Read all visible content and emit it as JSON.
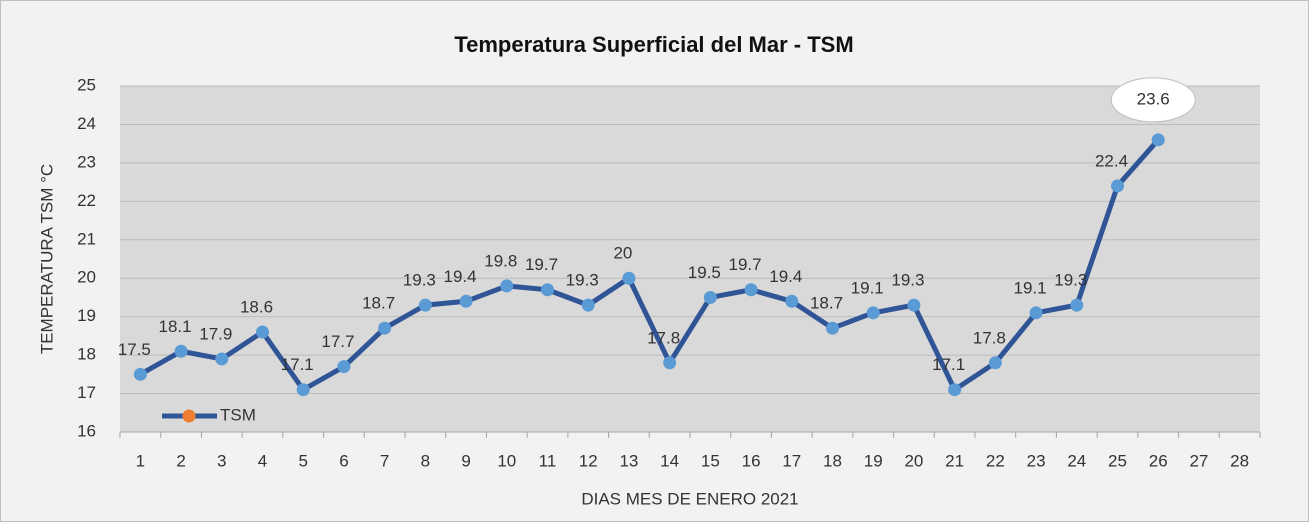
{
  "chart_data": {
    "type": "line",
    "title": "Temperatura Superficial del Mar - TSM",
    "x_label": "DIAS MES DE ENERO 2021",
    "y_label": "TEMPERATURA TSM °C",
    "categories": [
      "1",
      "2",
      "3",
      "4",
      "5",
      "6",
      "7",
      "8",
      "9",
      "10",
      "11",
      "12",
      "13",
      "14",
      "15",
      "16",
      "17",
      "18",
      "19",
      "20",
      "21",
      "22",
      "23",
      "24",
      "25",
      "26",
      "27",
      "28"
    ],
    "series": [
      {
        "name": "TSM",
        "color": "#2f5597",
        "marker_color": "#5b9bd5",
        "legend_marker_color": "#ed7d31",
        "values": [
          17.5,
          18.1,
          17.9,
          18.6,
          17.1,
          17.7,
          18.7,
          19.3,
          19.4,
          19.8,
          19.7,
          19.3,
          20,
          17.8,
          19.5,
          19.7,
          19.4,
          18.7,
          19.1,
          19.3,
          17.1,
          17.8,
          19.1,
          19.3,
          22.4,
          23.6,
          null,
          null
        ]
      }
    ],
    "ylim": [
      16,
      25
    ],
    "yticks": [
      16,
      17,
      18,
      19,
      20,
      21,
      22,
      23,
      24,
      25
    ],
    "grid": true,
    "legend": "lower left"
  }
}
